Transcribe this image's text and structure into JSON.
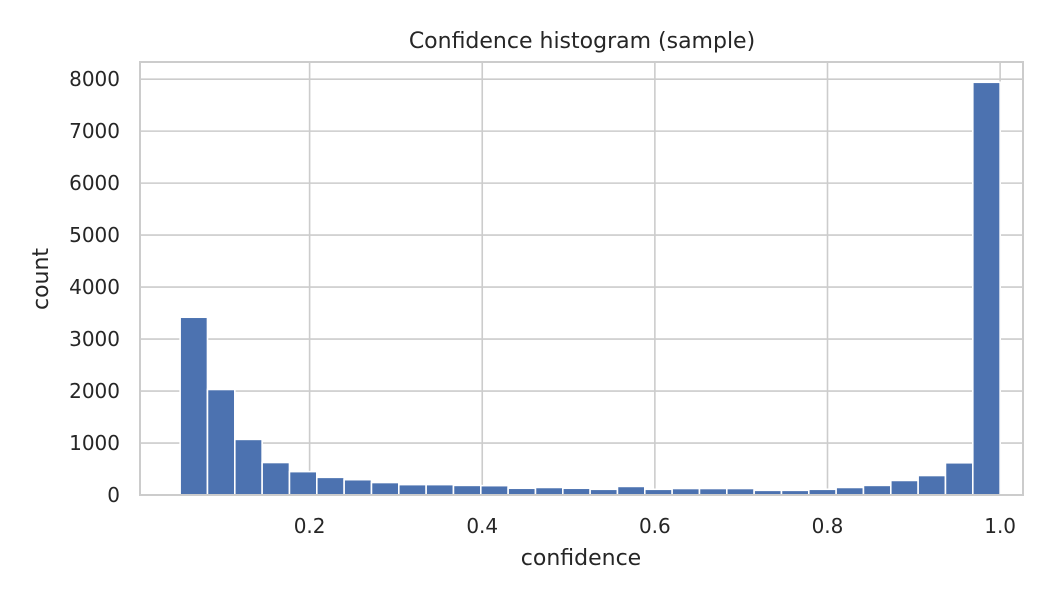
{
  "chart_data": {
    "type": "bar",
    "title": "Confidence histogram (sample)",
    "xlabel": "confidence",
    "ylabel": "count",
    "xlim": [
      0.0035,
      1.0265
    ],
    "ylim": [
      0,
      8330
    ],
    "xticks": [
      0.2,
      0.4,
      0.6,
      0.8,
      1.0
    ],
    "xtick_labels": [
      "0.2",
      "0.4",
      "0.6",
      "0.8",
      "1.0"
    ],
    "yticks": [
      0,
      1000,
      2000,
      3000,
      4000,
      5000,
      6000,
      7000,
      8000
    ],
    "ytick_labels": [
      "0",
      "1000",
      "2000",
      "3000",
      "4000",
      "5000",
      "6000",
      "7000",
      "8000"
    ],
    "grid": true,
    "bar_color": "#4c72b0",
    "bin_start": 0.05,
    "bin_end": 1.0,
    "values": [
      3420,
      2030,
      1070,
      625,
      450,
      340,
      295,
      240,
      200,
      200,
      185,
      180,
      130,
      145,
      130,
      110,
      165,
      110,
      125,
      125,
      125,
      90,
      90,
      110,
      145,
      185,
      280,
      375,
      620,
      7940
    ]
  }
}
